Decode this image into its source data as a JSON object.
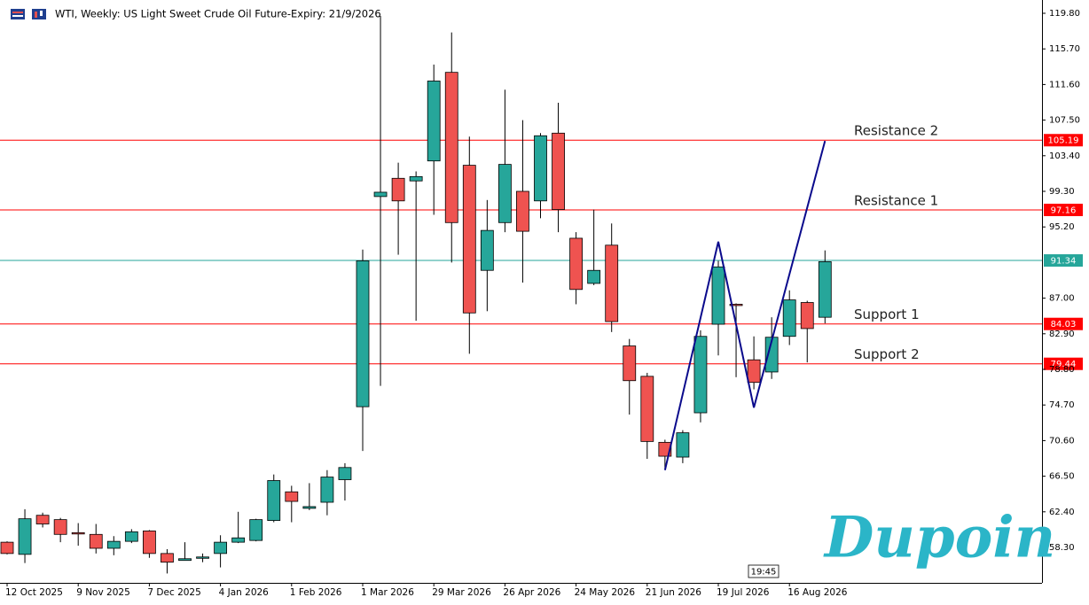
{
  "chart_data": {
    "type": "candlestick",
    "title": "WTI, Weekly:  US Light Sweet Crude Oil Future-Expiry: 21/9/2026",
    "categories": [
      "12 Oct 2025",
      null,
      null,
      null,
      "9 Nov 2025",
      null,
      null,
      null,
      "7 Dec 2025",
      null,
      null,
      null,
      "4 Jan 2026",
      null,
      null,
      null,
      "1 Feb 2026",
      null,
      null,
      null,
      "1 Mar 2026",
      null,
      null,
      null,
      "29 Mar 2026",
      null,
      null,
      null,
      "26 Apr 2026",
      null,
      null,
      null,
      "24 May 2026",
      null,
      null,
      null,
      "21 Jun 2026",
      null,
      null,
      null,
      "19 Jul 2026",
      null,
      null,
      null,
      "16 Aug 2026",
      null,
      null
    ],
    "open": [
      58.9,
      57.5,
      62.0,
      61.5,
      60.0,
      59.8,
      58.2,
      59.0,
      60.2,
      57.6,
      56.8,
      57.1,
      57.6,
      58.9,
      59.1,
      61.4,
      64.7,
      62.8,
      63.5,
      66.1,
      74.5,
      98.7,
      100.8,
      100.5,
      102.8,
      113.0,
      102.3,
      90.2,
      95.7,
      99.3,
      98.2,
      106.0,
      93.9,
      88.7,
      93.1,
      81.5,
      78.0,
      70.4,
      68.7,
      73.8,
      84.0,
      86.3,
      79.9,
      78.5,
      82.6,
      86.5,
      84.8
    ],
    "high": [
      59.0,
      62.7,
      62.3,
      61.7,
      61.1,
      61.0,
      59.6,
      60.4,
      60.3,
      58.1,
      58.9,
      57.6,
      59.7,
      62.4,
      61.6,
      66.7,
      65.4,
      65.7,
      67.2,
      68.0,
      92.6,
      119.5,
      102.6,
      101.6,
      113.9,
      117.6,
      105.6,
      98.3,
      111.0,
      107.5,
      106.0,
      109.5,
      94.6,
      97.2,
      95.6,
      82.3,
      78.4,
      70.7,
      71.8,
      83.3,
      91.3,
      86.4,
      82.6,
      84.8,
      87.9,
      86.7,
      92.5
    ],
    "low": [
      57.5,
      56.5,
      60.6,
      58.9,
      58.5,
      57.6,
      57.4,
      58.8,
      57.1,
      55.3,
      56.8,
      56.6,
      56.0,
      58.8,
      59.0,
      61.2,
      61.2,
      62.6,
      62.0,
      63.7,
      69.4,
      76.9,
      92.0,
      84.4,
      96.6,
      91.1,
      80.6,
      85.5,
      94.6,
      88.8,
      96.2,
      94.6,
      86.3,
      88.5,
      83.1,
      73.6,
      68.5,
      67.4,
      68.0,
      72.7,
      80.4,
      77.9,
      76.5,
      77.7,
      81.6,
      79.6,
      84.1
    ],
    "close": [
      57.6,
      61.6,
      61.0,
      59.8,
      59.9,
      58.2,
      59.0,
      60.1,
      57.6,
      56.6,
      57.0,
      57.2,
      58.9,
      59.4,
      61.5,
      66.0,
      63.6,
      63.0,
      66.4,
      67.5,
      91.3,
      99.2,
      98.2,
      101.0,
      112.0,
      95.7,
      85.3,
      94.8,
      102.4,
      94.7,
      105.7,
      97.2,
      88.0,
      90.2,
      84.3,
      77.5,
      70.5,
      68.8,
      71.5,
      82.6,
      90.6,
      86.2,
      77.3,
      82.5,
      86.8,
      83.5,
      91.2
    ],
    "up_color": "#26a69a",
    "down_color": "#ef5350",
    "ylim": [
      54.22,
      121.33
    ],
    "yticks": [
      {
        "value": 119.8,
        "label": "119.80"
      },
      {
        "value": 115.7,
        "label": "115.70"
      },
      {
        "value": 111.6,
        "label": "111.60"
      },
      {
        "value": 107.5,
        "label": "107.50"
      },
      {
        "value": 103.4,
        "label": "103.40"
      },
      {
        "value": 99.3,
        "label": "99.30"
      },
      {
        "value": 95.2,
        "label": "95.20"
      },
      {
        "value": 87,
        "label": "87.00"
      },
      {
        "value": 82.9,
        "label": "82.90"
      },
      {
        "value": 78.8,
        "label": "78.80"
      },
      {
        "value": 74.7,
        "label": "74.70"
      },
      {
        "value": 70.6,
        "label": "70.60"
      },
      {
        "value": 66.5,
        "label": "66.50"
      },
      {
        "value": 62.4,
        "label": "62.40"
      },
      {
        "value": 58.3,
        "label": "58.30"
      }
    ],
    "levels": [
      {
        "name": "Resistance 2",
        "value": 105.19,
        "color": "#ff0000"
      },
      {
        "name": "Resistance 1",
        "value": 97.16,
        "color": "#ff0000"
      },
      {
        "value": 91.34,
        "color": "#26a69a"
      },
      {
        "name": "Support 1",
        "value": 84.03,
        "color": "#ff0000"
      },
      {
        "name": "Support 2",
        "value": 79.44,
        "color": "#ff0000"
      }
    ],
    "pattern": {
      "x": [
        37,
        40,
        42,
        46
      ],
      "values": [
        67.2,
        93.5,
        74.4,
        105.1
      ],
      "color": "#0a0a8c"
    },
    "time_marker": "19:45",
    "watermark": "Dupoin"
  }
}
